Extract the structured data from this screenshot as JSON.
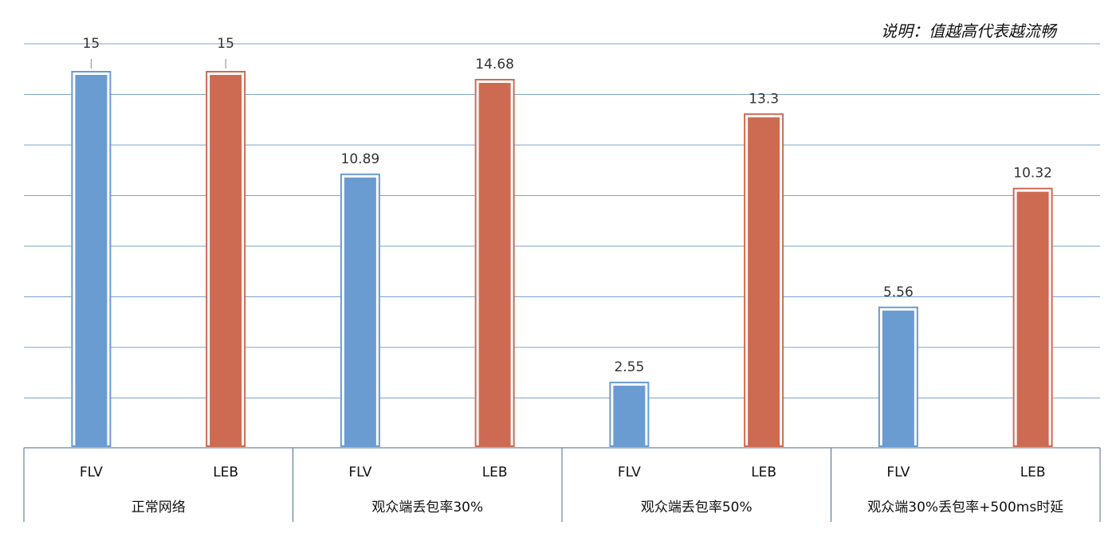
{
  "chart_data": {
    "type": "bar",
    "note": "说明：值越高代表越流畅",
    "y_max": 15,
    "grid": true,
    "groups": [
      {
        "label": "正常网络",
        "bars": [
          {
            "name": "FLV",
            "value": 15,
            "label": "15"
          },
          {
            "name": "LEB",
            "value": 15,
            "label": "15"
          }
        ]
      },
      {
        "label": "观众端丢包率30%",
        "bars": [
          {
            "name": "FLV",
            "value": 10.89,
            "label": "10.89"
          },
          {
            "name": "LEB",
            "value": 14.68,
            "label": "14.68"
          }
        ]
      },
      {
        "label": "观众端丢包率50%",
        "bars": [
          {
            "name": "FLV",
            "value": 2.55,
            "label": "2.55"
          },
          {
            "name": "LEB",
            "value": 13.3,
            "label": "13.3"
          }
        ]
      },
      {
        "label": "观众端30%丢包率+500ms时延",
        "bars": [
          {
            "name": "FLV",
            "value": 5.56,
            "label": "5.56"
          },
          {
            "name": "LEB",
            "value": 10.32,
            "label": "10.32"
          }
        ]
      }
    ],
    "colors": {
      "FLV": "#6a9bd1",
      "LEB": "#cd6a52",
      "grid": "#7ba3cc",
      "axis": "#4a6a8c"
    }
  }
}
